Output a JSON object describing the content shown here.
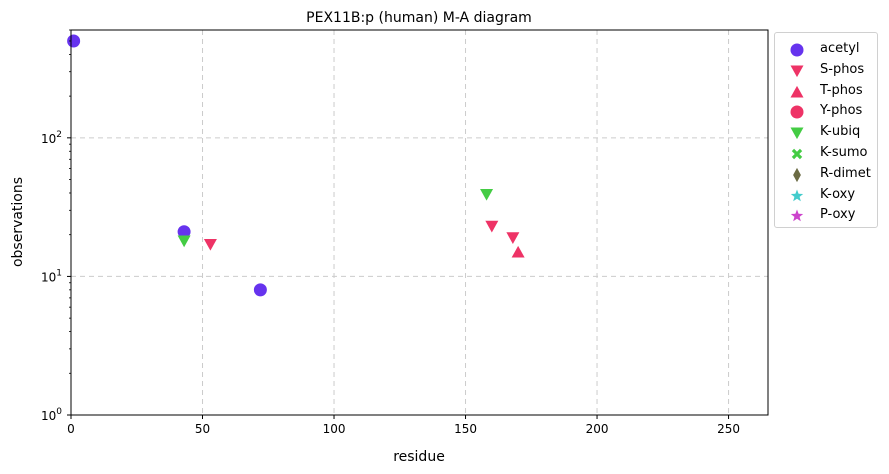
{
  "chart_data": {
    "type": "scatter",
    "title": "PEX11B:p (human) M-A diagram",
    "xlabel": "residue",
    "ylabel": "observations",
    "xlim": [
      0,
      265
    ],
    "ylim": [
      1,
      600
    ],
    "yscale": "log",
    "xticks": [
      0,
      50,
      100,
      150,
      200,
      250
    ],
    "yticks": [
      {
        "value": 1,
        "label": "10",
        "exp": "0"
      },
      {
        "value": 10,
        "label": "10",
        "exp": "1"
      },
      {
        "value": 100,
        "label": "10",
        "exp": "2"
      }
    ],
    "grid": true,
    "legend_position": "outside-right",
    "series": [
      {
        "name": "acetyl",
        "marker": "circle",
        "color": "#6633ee",
        "points": [
          {
            "x": 1,
            "y": 500
          },
          {
            "x": 43,
            "y": 21
          },
          {
            "x": 72,
            "y": 8
          }
        ]
      },
      {
        "name": "S-phos",
        "marker": "triangle-down",
        "color": "#ee3366",
        "points": [
          {
            "x": 53,
            "y": 17
          },
          {
            "x": 160,
            "y": 23
          },
          {
            "x": 168,
            "y": 19
          }
        ]
      },
      {
        "name": "T-phos",
        "marker": "triangle-up",
        "color": "#ee3366",
        "points": [
          {
            "x": 170,
            "y": 15
          }
        ]
      },
      {
        "name": "Y-phos",
        "marker": "circle",
        "color": "#ee3366",
        "points": []
      },
      {
        "name": "K-ubiq",
        "marker": "triangle-down",
        "color": "#44cc44",
        "points": [
          {
            "x": 43,
            "y": 18
          },
          {
            "x": 158,
            "y": 39
          }
        ]
      },
      {
        "name": "K-sumo",
        "marker": "x",
        "color": "#44cc44",
        "points": []
      },
      {
        "name": "R-dimet",
        "marker": "diamond",
        "color": "#6b6b44",
        "points": []
      },
      {
        "name": "K-oxy",
        "marker": "star",
        "color": "#44cccc",
        "points": []
      },
      {
        "name": "P-oxy",
        "marker": "star",
        "color": "#cc44cc",
        "points": []
      }
    ]
  }
}
